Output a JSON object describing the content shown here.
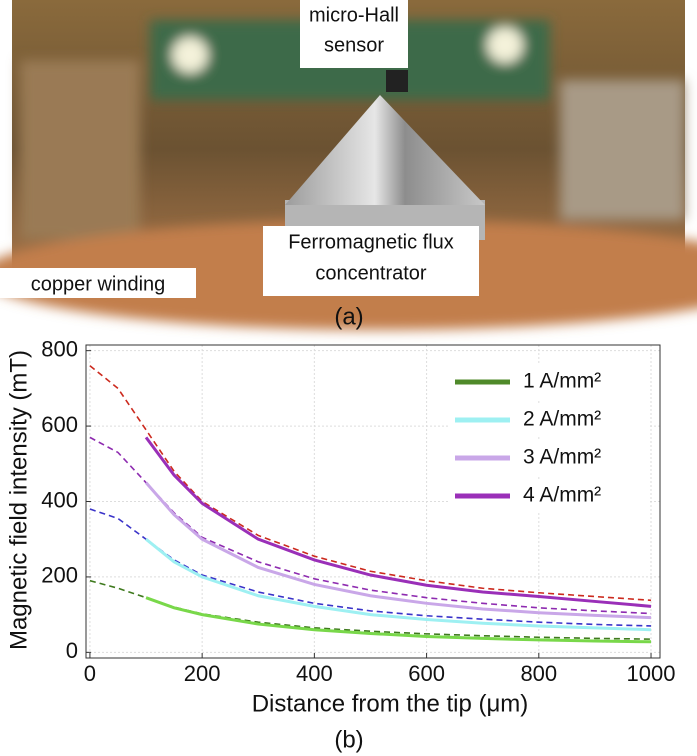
{
  "figure_a": {
    "annotations": [
      "micro-Hall",
      "sensor",
      "Ferromagnetic flux",
      "concentrator",
      "copper winding"
    ],
    "caption": "(a)"
  },
  "chart_data": {
    "type": "line",
    "caption": "(b)",
    "xlabel": "Distance from the tip (μm)",
    "ylabel": "Magnetic field intensity (mT)",
    "x": [
      0,
      50,
      100,
      150,
      200,
      300,
      400,
      500,
      600,
      700,
      800,
      900,
      1000
    ],
    "series": [
      {
        "color": "#cc2a1e",
        "dashed": true,
        "values": [
          760,
          700,
          590,
          480,
          400,
          310,
          255,
          215,
          190,
          170,
          158,
          148,
          138
        ]
      },
      {
        "color": "#8e2bb0",
        "dashed": true,
        "values": [
          570,
          530,
          450,
          370,
          305,
          240,
          195,
          165,
          145,
          130,
          118,
          110,
          103
        ]
      },
      {
        "color": "#3a33c9",
        "dashed": true,
        "values": [
          380,
          355,
          300,
          245,
          205,
          160,
          130,
          110,
          97,
          88,
          80,
          74,
          70
        ]
      },
      {
        "color": "#3f7a1e",
        "dashed": true,
        "values": [
          190,
          170,
          145,
          120,
          102,
          80,
          65,
          56,
          49,
          44,
          40,
          37,
          35
        ]
      },
      {
        "name": "1 A/mm²",
        "color": "#79d84a",
        "values": [
          null,
          null,
          145,
          118,
          100,
          75,
          60,
          50,
          42,
          37,
          33,
          30,
          28
        ]
      },
      {
        "name": "2 A/mm²",
        "color": "#9ef0f2",
        "values": [
          null,
          null,
          300,
          240,
          200,
          150,
          122,
          100,
          87,
          77,
          70,
          65,
          60
        ]
      },
      {
        "name": "3 A/mm²",
        "color": "#c9a7e8",
        "values": [
          null,
          null,
          450,
          365,
          300,
          225,
          180,
          150,
          130,
          115,
          105,
          98,
          92
        ]
      },
      {
        "name": "4 A/mm²",
        "color": "#9a2fb8",
        "values": [
          null,
          null,
          570,
          470,
          395,
          300,
          245,
          205,
          178,
          160,
          148,
          135,
          122
        ]
      }
    ],
    "legend_colors": [
      "#4f8a2a",
      "#9ef0f2",
      "#c9a7e8",
      "#9a2fb8"
    ],
    "xlim": [
      -7,
      1016
    ],
    "ylim": [
      -15,
      815
    ],
    "xticks": [
      0,
      200,
      400,
      600,
      800,
      1000
    ],
    "yticks": [
      0,
      200,
      400,
      600,
      800
    ],
    "grid": true,
    "legend": "upper right"
  }
}
